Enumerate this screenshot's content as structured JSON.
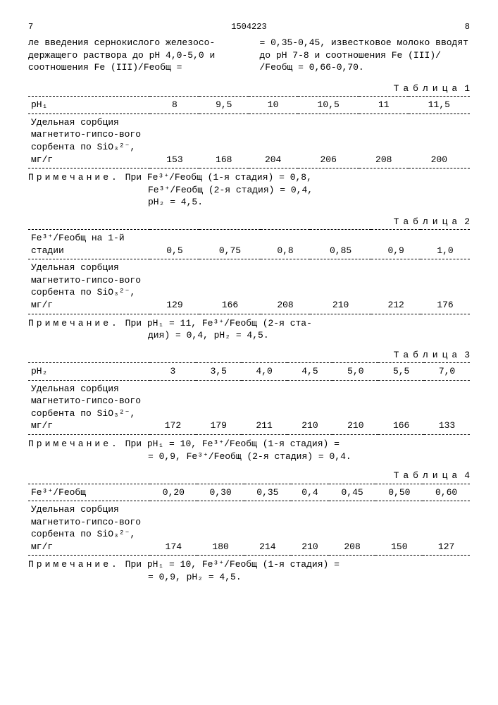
{
  "header": {
    "left_page": "7",
    "doc_number": "1504223",
    "right_page": "8"
  },
  "intro_left": "ле введения сернокислого железосо-держащего  раствора до pH 4,0-5,0 и соотношения  Fe (III)/Feобщ =",
  "intro_right": "= 0,35-0,45, известковое молоко вводят до pH 7-8 и соотношения Fe (III)/ /Feобщ = 0,66-0,70.",
  "sorption_label": "Удельная сорбция магнетито-гипсо-вого сорбента по SiO₃²⁻, мг/г",
  "note_label": "Примечание.",
  "tables": [
    {
      "title": "Таблица",
      "num": "1",
      "param_label": "pH₁",
      "params": [
        "8",
        "9,5",
        "10",
        "10,5",
        "11",
        "11,5"
      ],
      "values": [
        "153",
        "168",
        "204",
        "206",
        "208",
        "200"
      ],
      "note": [
        "При Fe³⁺/Feобщ (1-я стадия) = 0,8,",
        "Fe³⁺/Feобщ (2-я стадия) = 0,4,",
        "pH₂ = 4,5."
      ]
    },
    {
      "title": "Таблица",
      "num": "2",
      "param_label": "Fe³⁺/Feобщ на 1-й стадии",
      "params": [
        "0,5",
        "0,75",
        "0,8",
        "0,85",
        "0,9",
        "1,0"
      ],
      "values": [
        "129",
        "166",
        "208",
        "210",
        "212",
        "176"
      ],
      "note": [
        "При pH₁ = 11, Fe³⁺/Feобщ (2-я ста-",
        "дия) = 0,4, pH₂ = 4,5."
      ]
    },
    {
      "title": "Таблица",
      "num": "3",
      "param_label": "pH₂",
      "params": [
        "3",
        "3,5",
        "4,0",
        "4,5",
        "5,0",
        "5,5",
        "7,0"
      ],
      "values": [
        "172",
        "179",
        "211",
        "210",
        "210",
        "166",
        "133"
      ],
      "note": [
        "При pH₁ = 10, Fe³⁺/Feобщ (1-я стадия) =",
        "= 0,9, Fe³⁺/Feобщ (2-я стадия) = 0,4."
      ]
    },
    {
      "title": "Таблица",
      "num": "4",
      "param_label": "Fe³⁺/Feобщ",
      "params": [
        "0,20",
        "0,30",
        "0,35",
        "0,4",
        "0,45",
        "0,50",
        "0,60"
      ],
      "values": [
        "174",
        "180",
        "214",
        "210",
        "208",
        "150",
        "127"
      ],
      "note": [
        "При pH₁ = 10, Fe³⁺/Feобщ (1-я стадия) =",
        "= 0,9, pH₂ = 4,5."
      ]
    }
  ]
}
